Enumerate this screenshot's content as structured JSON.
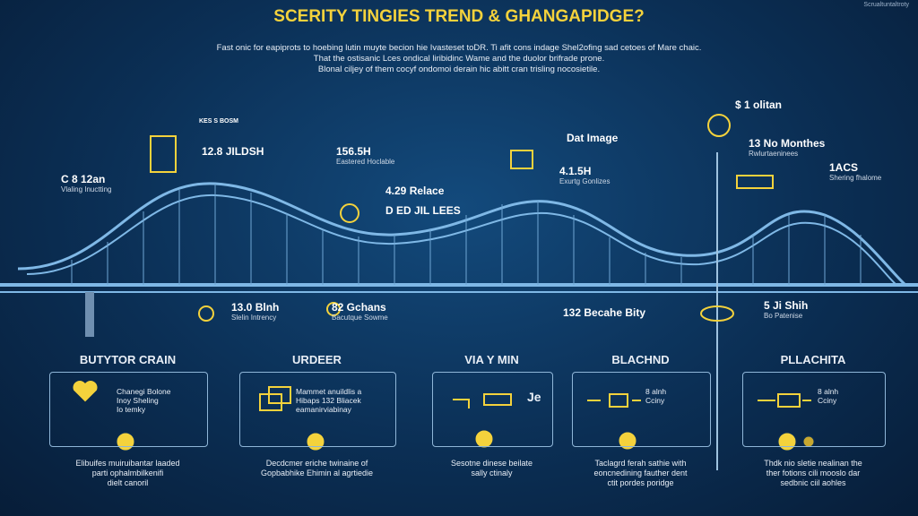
{
  "header": {
    "title": "SCERITY TINGIES TREND & GHANGAPIDGE?",
    "corner_note": "Scrualtuntaltroty",
    "intro": [
      "Fast onic for eapiprots to hoebing lutin muyte becion hie Ivasteset toDR. Ti afit cons indage Shel2ofing sad cetoes of Mare chaic.",
      "That the ostisanic Lces ondical liribidinc Wame and the duolor brifrade prone.",
      "Blonal ciljey of them cocyf ondomoi derain hic abitt cran trisling nocosietile."
    ]
  },
  "bridge_labels": [
    {
      "value": "C 8 12an",
      "caption": "Vlaling Inuctting"
    },
    {
      "value": "KES S BOSM"
    },
    {
      "value": "12.8 JILDSH"
    },
    {
      "value": "156.5H",
      "caption": "Eastered Hoclable"
    },
    {
      "value": "4.29 Relace"
    },
    {
      "value": "D ED JIL LEES"
    },
    {
      "value": "Dat Image"
    },
    {
      "value": "4.1.5H",
      "caption": "Exurtg Gonlizes"
    },
    {
      "value": "$ 1 olitan"
    },
    {
      "value": "13 No Monthes",
      "caption": "Rwlurtaeninees"
    },
    {
      "value": "1ACS",
      "caption": "Shering fhalome"
    },
    {
      "value": "13.0 Blnh",
      "caption": "Slelin Intrency"
    },
    {
      "value": "82 Gchans",
      "caption": "Bacutque Sowme"
    },
    {
      "value": "132 Becahe Bity"
    },
    {
      "value": "5 Ji Shih",
      "caption": "Bo Patenise"
    }
  ],
  "cards": [
    {
      "heading": "BUTYTOR CRAIN",
      "body": [
        "Chanegi Bolone",
        "Inoy Sheling",
        "Io temky"
      ],
      "caption": [
        "Elibuifes muiruibantar laaded",
        "parti ophalmbilkenifi",
        "dielt canoril"
      ]
    },
    {
      "heading": "URDEER",
      "body": [
        "Mammet anuildlis a",
        "Hibaps 132 Bliacek",
        "eamanirviabinay"
      ],
      "caption": [
        "Decdcmer eriche twinaine of",
        "Gopbabhike Ehimin al agrtiedie"
      ]
    },
    {
      "heading": "VIA Y MIN",
      "body": [
        "Je"
      ],
      "caption": [
        "Sesotne dinese beilate",
        "sally ctinaly"
      ]
    },
    {
      "heading": "BLACHND",
      "body": [
        "8 alnh",
        "Cciny"
      ],
      "caption": [
        "Taclagrd ferah sathie with",
        "eoncnedining fauther dent",
        "ctit pordes poridge"
      ]
    },
    {
      "heading": "PLLACHITA",
      "body": [
        "8 alnh",
        "Cciny"
      ],
      "caption": [
        "Thdk nio sletie nealinan the",
        "ther fotions cili mooslo dar",
        "sedbnic ciil aohles"
      ]
    }
  ]
}
